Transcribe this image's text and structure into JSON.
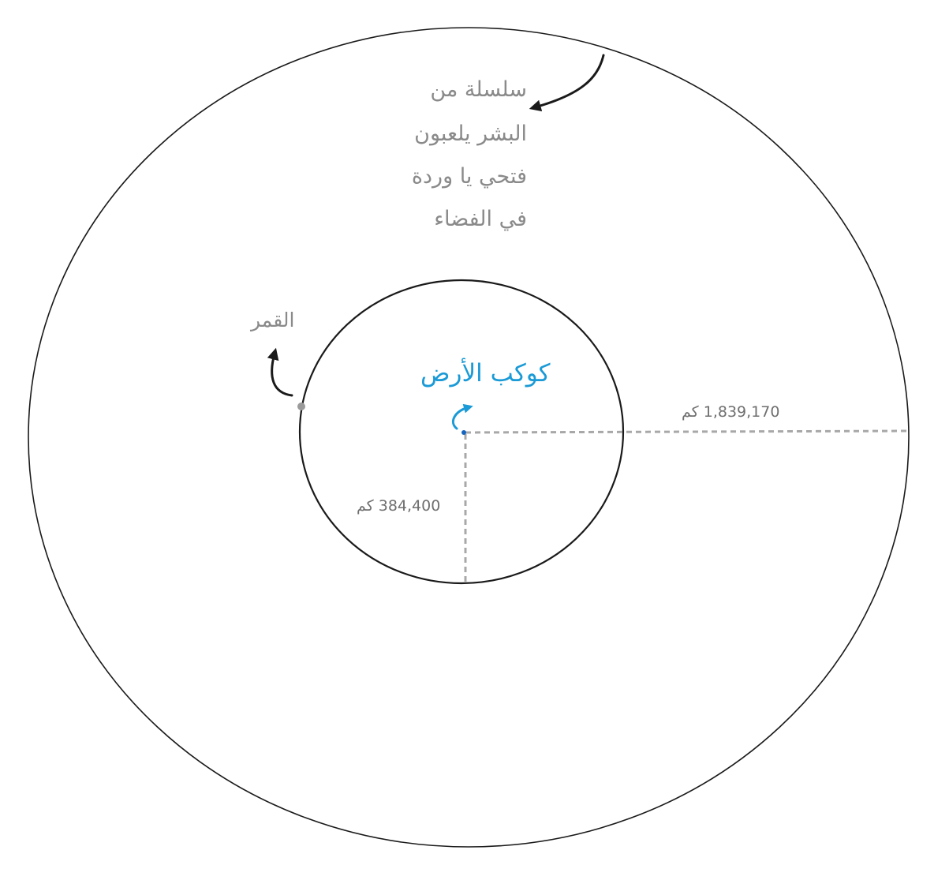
{
  "labels": {
    "note_lines": [
      "سلسلة من",
      "البشر يلعبون",
      "فتحي يا وردة",
      "في الفضاء"
    ],
    "moon": "القمر",
    "earth": "كوكب الأرض",
    "outer_distance": "1,839,170 كم",
    "inner_distance": "384,400 كم"
  },
  "colors": {
    "outline": "#1a1a1a",
    "note_text": "#8a8a8a",
    "earth_text": "#1a9ad6",
    "distance_line": "#a8a8a8",
    "distance_text": "#6f6f6f",
    "moon_dot": "#9a9a9a",
    "earth_dot": "#1565c0"
  },
  "icons": {
    "note_arrow": "curved-arrow-icon",
    "moon_arrow": "curved-arrow-up-icon",
    "earth_arrow": "curved-arrow-up-icon"
  }
}
